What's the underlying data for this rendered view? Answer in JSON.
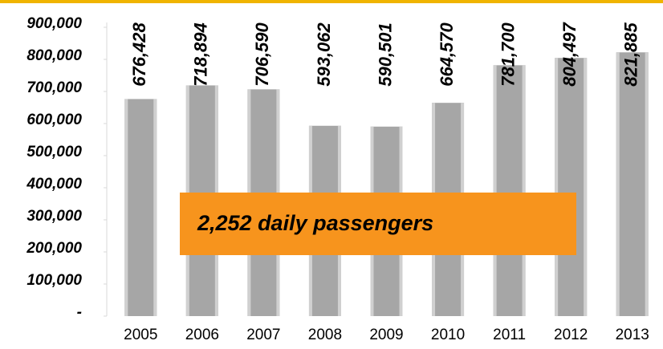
{
  "chart_data": {
    "type": "bar",
    "categories": [
      "2005",
      "2006",
      "2007",
      "2008",
      "2009",
      "2010",
      "2011",
      "2012",
      "2013"
    ],
    "values": [
      676428,
      718894,
      706590,
      593062,
      590501,
      664570,
      781700,
      804497,
      821885
    ],
    "value_labels": [
      "676,428",
      "718,894",
      "706,590",
      "593,062",
      "590,501",
      "664,570",
      "781,700",
      "804,497",
      "821,885"
    ],
    "color": "#a6a6a6",
    "ylim": [
      0,
      950000
    ],
    "yticks": [
      {
        "value": 0,
        "label": "-"
      },
      {
        "value": 100000,
        "label": "100,000"
      },
      {
        "value": 200000,
        "label": "200,000"
      },
      {
        "value": 300000,
        "label": "300,000"
      },
      {
        "value": 400000,
        "label": "400,000"
      },
      {
        "value": 500000,
        "label": "500,000"
      },
      {
        "value": 600000,
        "label": "600,000"
      },
      {
        "value": 700000,
        "label": "700,000"
      },
      {
        "value": 800000,
        "label": "800,000"
      },
      {
        "value": 900000,
        "label": "900,000"
      }
    ],
    "annotation": "2,252 daily passengers"
  }
}
